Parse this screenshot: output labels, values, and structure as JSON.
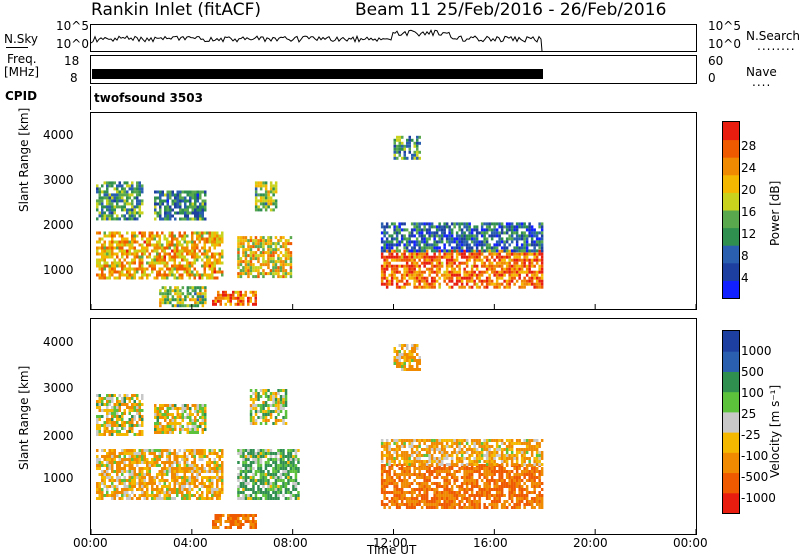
{
  "header": {
    "title_left": "Rankin Inlet (fitACF)",
    "title_right": "Beam 11  25/Feb/2016 - 26/Feb/2016"
  },
  "noise_panel": {
    "left_label": "N.Sky",
    "right_label": "N.Search",
    "right_dots": "........",
    "left_ticks": [
      "10^5",
      "10^0"
    ],
    "right_ticks": [
      "10^5",
      "10^0"
    ]
  },
  "freq_panel": {
    "left_label_1": "Freq.",
    "left_label_2": "[MHz]",
    "right_label": "Nave",
    "right_dots": "....",
    "left_ticks": [
      "18",
      "8"
    ],
    "right_ticks": [
      "60",
      "0"
    ]
  },
  "cpid_panel": {
    "label": "CPID",
    "value": "twofsound 3503"
  },
  "colors": {
    "power_scale": [
      "#1020ff",
      "#1d3fa0",
      "#2a5fb0",
      "#2f8f4f",
      "#59a84e",
      "#c9d21c",
      "#f5b800",
      "#f08a00",
      "#ef5a00",
      "#e81d10"
    ],
    "velocity_scale": [
      "#e81d10",
      "#ef5a00",
      "#f08a00",
      "#f5b800",
      "#c8c8c8",
      "#5cc23c",
      "#2f8f4f",
      "#2a5fb0",
      "#1d3fa0"
    ]
  },
  "chart_data": [
    {
      "type": "heatmap",
      "name": "power",
      "ylabel": "Slant Range [km]",
      "xlabel": "",
      "yticks": [
        "1000",
        "2000",
        "3000",
        "4000"
      ],
      "ylim": [
        200,
        4500
      ],
      "xlim": [
        0,
        24
      ],
      "colorbar": {
        "label": "Power [dB]",
        "ticks": [
          "4",
          "8",
          "12",
          "16",
          "20",
          "24",
          "28"
        ],
        "range": [
          0,
          32
        ]
      },
      "echo_regions": [
        {
          "t0": 0.2,
          "t1": 5.2,
          "r0": 900,
          "r1": 1900,
          "level": 22
        },
        {
          "t0": 5.8,
          "t1": 7.9,
          "r0": 900,
          "r1": 1800,
          "level": 20
        },
        {
          "t0": 0.2,
          "t1": 2.0,
          "r0": 2200,
          "r1": 3000,
          "level": 12
        },
        {
          "t0": 2.5,
          "t1": 4.5,
          "r0": 2200,
          "r1": 2800,
          "level": 10
        },
        {
          "t0": 4.8,
          "t1": 6.5,
          "r0": 300,
          "r1": 600,
          "level": 26
        },
        {
          "t0": 2.7,
          "t1": 4.5,
          "r0": 300,
          "r1": 700,
          "level": 16
        },
        {
          "t0": 11.5,
          "t1": 17.9,
          "r0": 700,
          "r1": 1500,
          "level": 26
        },
        {
          "t0": 11.5,
          "t1": 17.9,
          "r0": 1500,
          "r1": 2100,
          "level": 8
        },
        {
          "t0": 12.0,
          "t1": 13.0,
          "r0": 3500,
          "r1": 4000,
          "level": 12
        },
        {
          "t0": 6.5,
          "t1": 7.3,
          "r0": 2400,
          "r1": 3000,
          "level": 16
        }
      ]
    },
    {
      "type": "heatmap",
      "name": "velocity",
      "ylabel": "Slant Range [km]",
      "xlabel": "Time UT",
      "xticks": [
        "00:00",
        "04:00",
        "08:00",
        "12:00",
        "16:00",
        "20:00",
        "00:00"
      ],
      "yticks": [
        "1000",
        "2000",
        "3000",
        "4000"
      ],
      "ylim": [
        200,
        4500
      ],
      "xlim": [
        0,
        24
      ],
      "colorbar": {
        "label": "Velocity [m s⁻¹]",
        "ticks": [
          "1000",
          "500",
          "100",
          "25",
          "-25",
          "-100",
          "-500",
          "-1000"
        ]
      },
      "echo_regions": [
        {
          "t0": 0.2,
          "t1": 5.2,
          "r0": 900,
          "r1": 1900,
          "vel": -100
        },
        {
          "t0": 5.8,
          "t1": 8.2,
          "r0": 900,
          "r1": 1900,
          "vel": 100
        },
        {
          "t0": 0.2,
          "t1": 2.0,
          "r0": 2200,
          "r1": 3000,
          "vel": -25
        },
        {
          "t0": 2.5,
          "t1": 4.5,
          "r0": 2200,
          "r1": 2800,
          "vel": -25
        },
        {
          "t0": 6.3,
          "t1": 7.7,
          "r0": 2400,
          "r1": 3100,
          "vel": 25
        },
        {
          "t0": 4.8,
          "t1": 6.5,
          "r0": 300,
          "r1": 600,
          "vel": -500
        },
        {
          "t0": 11.5,
          "t1": 17.9,
          "r0": 700,
          "r1": 1600,
          "vel": -500
        },
        {
          "t0": 11.5,
          "t1": 17.9,
          "r0": 1600,
          "r1": 2100,
          "vel": -100
        },
        {
          "t0": 12.0,
          "t1": 13.0,
          "r0": 3500,
          "r1": 4000,
          "vel": -100
        }
      ]
    }
  ]
}
